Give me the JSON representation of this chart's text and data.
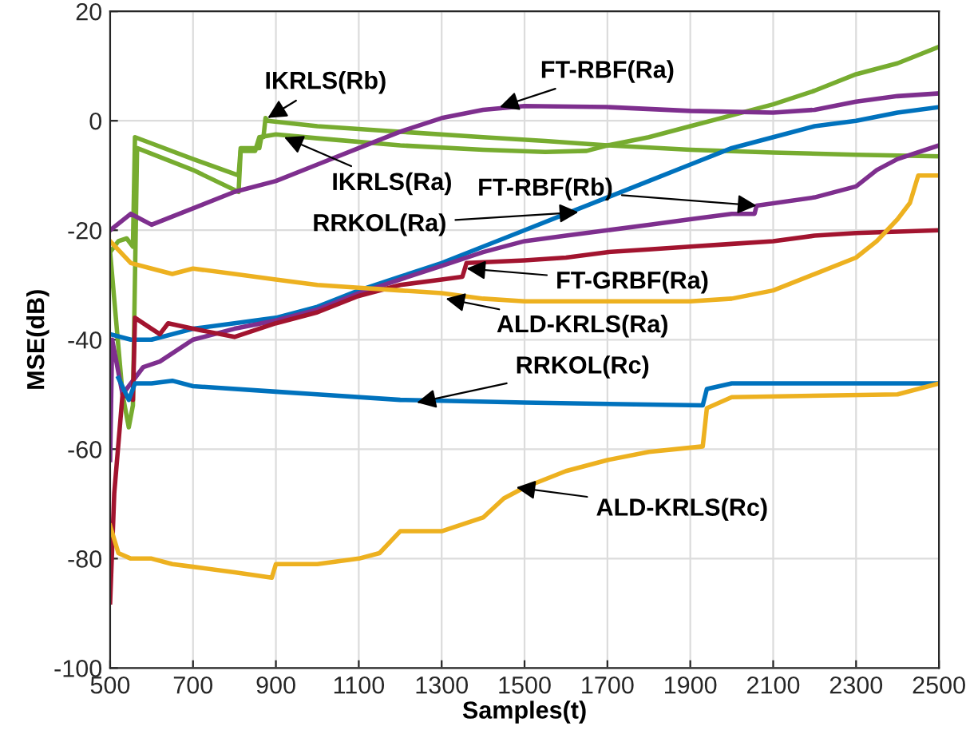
{
  "chart_data": {
    "type": "line",
    "xlabel": "Samples(t)",
    "ylabel": "MSE(dB)",
    "xlim": [
      500,
      2500
    ],
    "ylim": [
      -100,
      20
    ],
    "xticks": [
      500,
      700,
      900,
      1100,
      1300,
      1500,
      1700,
      1900,
      2100,
      2300,
      2500
    ],
    "yticks": [
      -100,
      -80,
      -60,
      -40,
      -20,
      0,
      20
    ],
    "grid": true,
    "line_style": "solid",
    "series": [
      {
        "color": "#77ac30",
        "x": [
          500,
          520,
          540,
          555,
          560,
          700,
          810,
          815,
          860,
          865,
          870,
          875,
          880,
          1000,
          1200,
          1400,
          1550,
          1700,
          1900,
          2100,
          2300,
          2500
        ],
        "values": [
          -24,
          -22,
          -21.5,
          -23,
          -3,
          -7,
          -10,
          -5,
          -5,
          -3,
          -3,
          0.5,
          0,
          -1,
          -2,
          -3,
          -3.7,
          -4.5,
          -5.3,
          -5.8,
          -6.2,
          -6.5
        ]
      },
      {
        "color": "#77ac30",
        "x": [
          500,
          530,
          545,
          555,
          565,
          700,
          810,
          815,
          850,
          860,
          900,
          1000,
          1200,
          1400,
          1550,
          1650,
          1700,
          1800,
          1900,
          2000,
          2100,
          2200,
          2300,
          2400,
          2500
        ],
        "values": [
          -24,
          -50,
          -56,
          -52,
          -5,
          -9,
          -13,
          -5.5,
          -5.5,
          -3,
          -2.5,
          -3.2,
          -4.5,
          -5.3,
          -5.7,
          -5.5,
          -4.5,
          -3,
          -1,
          1,
          3,
          5.5,
          8.5,
          10.5,
          13.5
        ]
      },
      {
        "color": "#7e2f8e",
        "x": [
          500,
          550,
          600,
          700,
          800,
          900,
          1000,
          1100,
          1200,
          1300,
          1400,
          1500,
          1700,
          1900,
          2100,
          2200,
          2300,
          2400,
          2500
        ],
        "values": [
          -20,
          -17,
          -19,
          -16,
          -13,
          -11,
          -8,
          -5,
          -2,
          0.5,
          2,
          2.7,
          2.5,
          1.8,
          1.5,
          2,
          3.5,
          4.5,
          5
        ]
      },
      {
        "color": "#0072bd",
        "x": [
          500,
          550,
          600,
          700,
          800,
          900,
          1000,
          1100,
          1200,
          1300,
          1400,
          1500,
          1600,
          1700,
          1800,
          1900,
          2000,
          2100,
          2200,
          2300,
          2400,
          2500
        ],
        "values": [
          -39,
          -40,
          -40,
          -38,
          -37,
          -36,
          -34,
          -31,
          -28.5,
          -26,
          -23,
          -20,
          -17,
          -14,
          -11,
          -8,
          -5,
          -3,
          -1,
          0,
          1.5,
          2.5
        ]
      },
      {
        "color": "#7e2f8e",
        "x": [
          500,
          505,
          530,
          580,
          620,
          700,
          800,
          900,
          1000,
          1100,
          1200,
          1300,
          1400,
          1500,
          1600,
          1700,
          1800,
          1900,
          2000,
          2055,
          2060,
          2200,
          2300,
          2350,
          2400,
          2500
        ],
        "values": [
          -62,
          -40,
          -50,
          -45,
          -44,
          -40,
          -38,
          -36.5,
          -34.5,
          -31.5,
          -29,
          -26.5,
          -24,
          -22,
          -21,
          -20,
          -19,
          -18,
          -17,
          -17,
          -15.5,
          -14,
          -12,
          -9,
          -7,
          -4.5
        ]
      },
      {
        "color": "#a2142f",
        "x": [
          500,
          510,
          530,
          555,
          560,
          600,
          620,
          640,
          700,
          800,
          900,
          1000,
          1100,
          1200,
          1300,
          1350,
          1360,
          1500,
          1600,
          1700,
          1800,
          1900,
          2000,
          2100,
          2200,
          2300,
          2500
        ],
        "values": [
          -88,
          -68,
          -50,
          -51,
          -36,
          -38,
          -39,
          -37,
          -38,
          -39.5,
          -37,
          -35,
          -32,
          -30,
          -29,
          -28.5,
          -26,
          -25.5,
          -25,
          -24,
          -23.5,
          -23,
          -22.5,
          -22,
          -21,
          -20.5,
          -20
        ]
      },
      {
        "color": "#edb120",
        "x": [
          500,
          550,
          600,
          650,
          700,
          800,
          900,
          1000,
          1100,
          1200,
          1300,
          1400,
          1500,
          1700,
          1900,
          2000,
          2100,
          2200,
          2300,
          2350,
          2400,
          2430,
          2450,
          2500
        ],
        "values": [
          -22,
          -26,
          -27,
          -28,
          -27,
          -28,
          -29,
          -30,
          -30.5,
          -31,
          -31.5,
          -32.5,
          -33,
          -33,
          -33,
          -32.5,
          -31,
          -28,
          -25,
          -22,
          -18,
          -15,
          -10,
          -10
        ]
      },
      {
        "color": "#0072bd",
        "x": [
          520,
          545,
          560,
          600,
          650,
          700,
          900,
          1000,
          1200,
          1500,
          1930,
          1940,
          1970,
          2000,
          2500
        ],
        "values": [
          -47,
          -51,
          -48,
          -48,
          -47.5,
          -48.5,
          -49.5,
          -50,
          -51,
          -51.5,
          -52,
          -49,
          -48.5,
          -48,
          -48
        ]
      },
      {
        "color": "#edb120",
        "x": [
          500,
          520,
          550,
          600,
          650,
          700,
          800,
          890,
          900,
          1000,
          1100,
          1150,
          1200,
          1300,
          1400,
          1450,
          1500,
          1600,
          1700,
          1800,
          1930,
          1940,
          2000,
          2400,
          2500
        ],
        "values": [
          -74,
          -79,
          -80,
          -80,
          -81,
          -81.5,
          -82.5,
          -83.5,
          -81,
          -81,
          -80,
          -79,
          -75,
          -75,
          -72.5,
          -69,
          -67,
          -64,
          -62,
          -60.5,
          -59.5,
          -52.5,
          -50.5,
          -50,
          -48
        ]
      }
    ],
    "annotations": [
      {
        "text": "IKRLS(Rb)",
        "x": 880,
        "y": 0.5
      },
      {
        "text": "FT-RBF(Ra)",
        "x": 1440,
        "y": 2.5
      },
      {
        "text": "IKRLS(Ra)",
        "x": 920,
        "y": -3
      },
      {
        "text": "FT-RBF(Rb)",
        "x": 2060,
        "y": -15.5
      },
      {
        "text": "RRKOL(Ra)",
        "x": 1630,
        "y": -16.7
      },
      {
        "text": "FT-GRBF(Ra)",
        "x": 1360,
        "y": -27
      },
      {
        "text": "ALD-KRLS(Ra)",
        "x": 1310,
        "y": -32.5
      },
      {
        "text": "RRKOL(Rc)",
        "x": 1240,
        "y": -51.5
      },
      {
        "text": "ALD-KRLS(Rc)",
        "x": 1480,
        "y": -67
      }
    ]
  }
}
